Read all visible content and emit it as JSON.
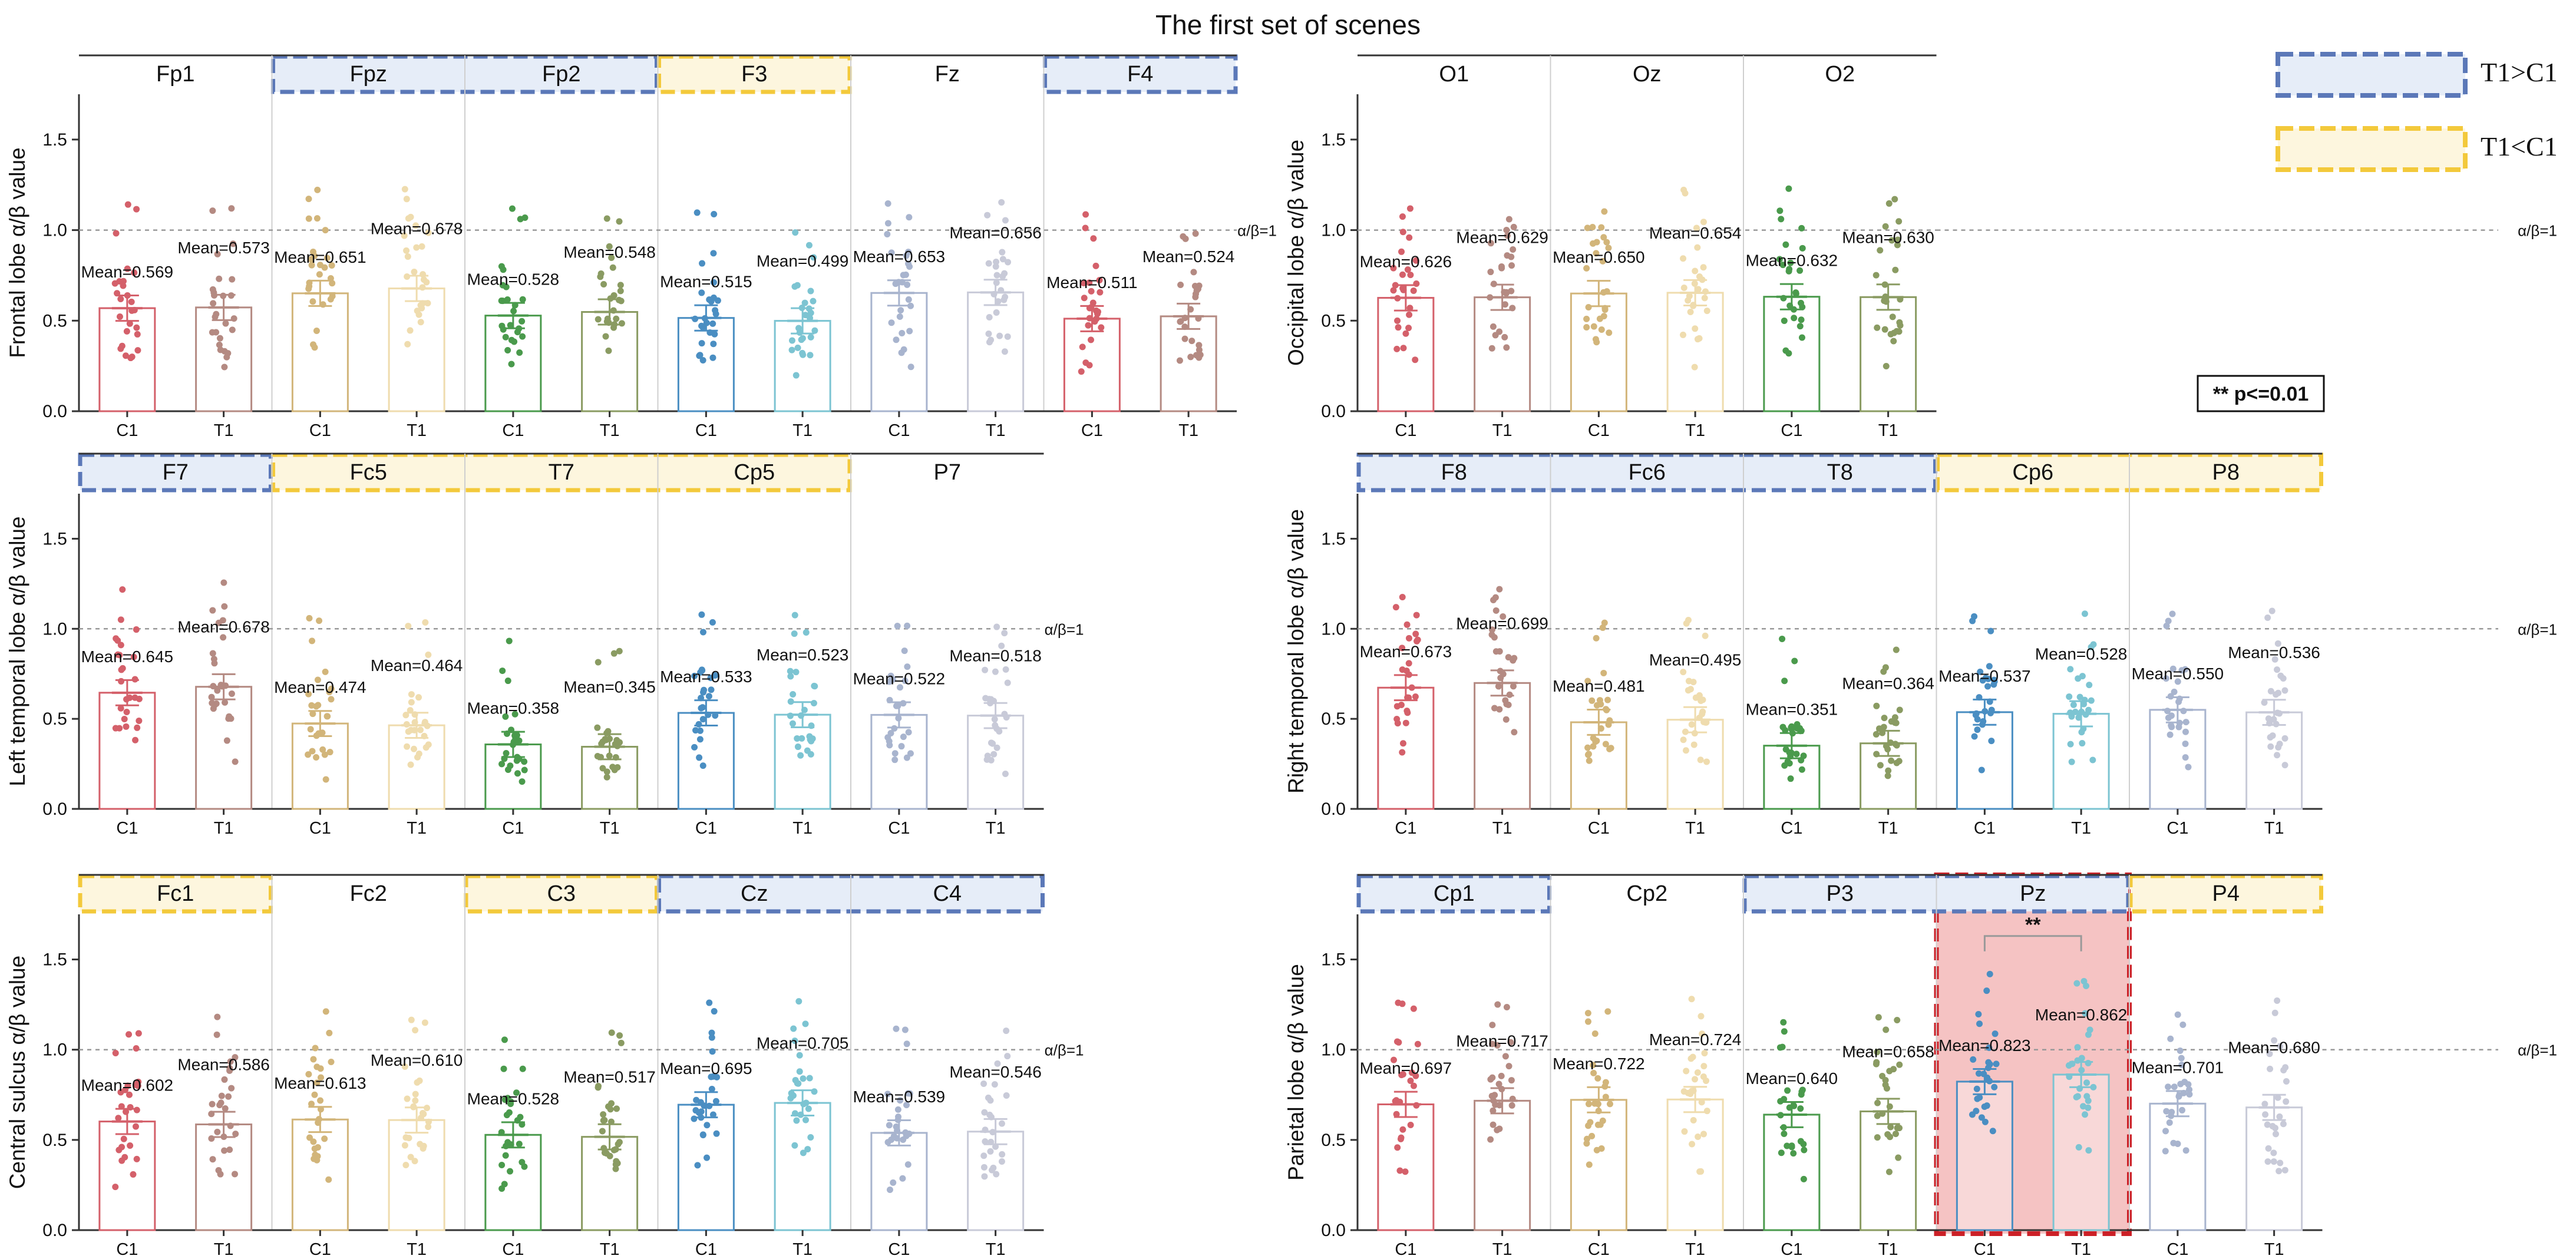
{
  "figure": {
    "title": "The first set of scenes",
    "legend": [
      {
        "label": "T1>C1",
        "stroke": "#5b78b8",
        "fill": "#e6edf8"
      },
      {
        "label": "T1<C1",
        "stroke": "#f3c93b",
        "fill": "#fdf6de"
      }
    ],
    "significance_note": "** p<=0.01",
    "ref_line_label": "α/β=1",
    "colors": {
      "highlight_blue_stroke": "#5b78b8",
      "highlight_blue_fill": "#e6edf8",
      "highlight_yellow_stroke": "#f3c93b",
      "highlight_yellow_fill": "#fdf6de",
      "sig_stroke": "#cc2027",
      "sig_fill": "#f5c3c3",
      "C1": [
        "#d4606a",
        "#d2b57a",
        "#4a9a4c",
        "#4a8ec2",
        "#a8b4ce"
      ],
      "T1": [
        "#b48a82",
        "#efdcae",
        "#8a9b62",
        "#7cc4d2",
        "#c8cad8"
      ]
    }
  },
  "chart_data": [
    {
      "type": "bar",
      "panel": "frontal",
      "ylabel": "Frontal lobe α/β value",
      "ylim": [
        0,
        1.75
      ],
      "yticks": [
        "0.0",
        "0.5",
        "1.0",
        "1.5"
      ],
      "ref_value": 1.0,
      "channels": [
        "Fp1",
        "Fpz",
        "Fp2",
        "F3",
        "Fz",
        "F4"
      ],
      "highlights": [
        {
          "start": 1,
          "end": 2,
          "kind": "blue"
        },
        {
          "start": 3,
          "end": 3,
          "kind": "yellow"
        },
        {
          "start": 5,
          "end": 5,
          "kind": "blue"
        }
      ],
      "categories": [
        "C1",
        "T1"
      ],
      "values": [
        [
          0.569,
          0.573
        ],
        [
          0.651,
          0.678
        ],
        [
          0.528,
          0.548
        ],
        [
          0.515,
          0.499
        ],
        [
          0.653,
          0.656
        ],
        [
          0.511,
          0.524
        ]
      ],
      "labels": [
        [
          "Mean=0.569",
          "Mean=0.573"
        ],
        [
          "Mean=0.651",
          "Mean=0.678"
        ],
        [
          "Mean=0.528",
          "Mean=0.548"
        ],
        [
          "Mean=0.515",
          "Mean=0.499"
        ],
        [
          "Mean=0.653",
          "Mean=0.656"
        ],
        [
          "Mean=0.511",
          "Mean=0.524"
        ]
      ],
      "sig": null
    },
    {
      "type": "bar",
      "panel": "occipital",
      "ylabel": "Occipital lobe α/β value",
      "ylim": [
        0,
        1.75
      ],
      "yticks": [
        "0.0",
        "0.5",
        "1.0",
        "1.5"
      ],
      "ref_value": 1.0,
      "channels": [
        "O1",
        "Oz",
        "O2"
      ],
      "highlights": [],
      "categories": [
        "C1",
        "T1"
      ],
      "values": [
        [
          0.626,
          0.629
        ],
        [
          0.65,
          0.654
        ],
        [
          0.632,
          0.63
        ]
      ],
      "labels": [
        [
          "Mean=0.626",
          "Mean=0.629"
        ],
        [
          "Mean=0.650",
          "Mean=0.654"
        ],
        [
          "Mean=0.632",
          "Mean=0.630"
        ]
      ],
      "sig": null
    },
    {
      "type": "bar",
      "panel": "left-temporal",
      "ylabel": "Left temporal lobe α/β value",
      "ylim": [
        0,
        1.75
      ],
      "yticks": [
        "0.0",
        "0.5",
        "1.0",
        "1.5"
      ],
      "ref_value": 1.0,
      "channels": [
        "F7",
        "Fc5",
        "T7",
        "Cp5",
        "P7"
      ],
      "highlights": [
        {
          "start": 0,
          "end": 0,
          "kind": "blue"
        },
        {
          "start": 1,
          "end": 3,
          "kind": "yellow"
        }
      ],
      "categories": [
        "C1",
        "T1"
      ],
      "values": [
        [
          0.645,
          0.678
        ],
        [
          0.474,
          0.464
        ],
        [
          0.358,
          0.345
        ],
        [
          0.533,
          0.523
        ],
        [
          0.522,
          0.518
        ]
      ],
      "labels": [
        [
          "Mean=0.645",
          "Mean=0.678"
        ],
        [
          "Mean=0.474",
          "Mean=0.464"
        ],
        [
          "Mean=0.358",
          "Mean=0.345"
        ],
        [
          "Mean=0.533",
          "Mean=0.523"
        ],
        [
          "Mean=0.522",
          "Mean=0.518"
        ]
      ],
      "sig": null
    },
    {
      "type": "bar",
      "panel": "right-temporal",
      "ylabel": "Right temporal lobe α/β value",
      "ylim": [
        0,
        1.75
      ],
      "yticks": [
        "0.0",
        "0.5",
        "1.0",
        "1.5"
      ],
      "ref_value": 1.0,
      "channels": [
        "F8",
        "Fc6",
        "T8",
        "Cp6",
        "P8"
      ],
      "highlights": [
        {
          "start": 0,
          "end": 2,
          "kind": "blue"
        },
        {
          "start": 3,
          "end": 4,
          "kind": "yellow"
        }
      ],
      "categories": [
        "C1",
        "T1"
      ],
      "values": [
        [
          0.673,
          0.699
        ],
        [
          0.481,
          0.495
        ],
        [
          0.351,
          0.364
        ],
        [
          0.537,
          0.528
        ],
        [
          0.55,
          0.536
        ]
      ],
      "labels": [
        [
          "Mean=0.673",
          "Mean=0.699"
        ],
        [
          "Mean=0.481",
          "Mean=0.495"
        ],
        [
          "Mean=0.351",
          "Mean=0.364"
        ],
        [
          "Mean=0.537",
          "Mean=0.528"
        ],
        [
          "Mean=0.550",
          "Mean=0.536"
        ]
      ],
      "sig": null
    },
    {
      "type": "bar",
      "panel": "central",
      "ylabel": "Central sulcus α/β value",
      "ylim": [
        0,
        1.75
      ],
      "yticks": [
        "0.0",
        "0.5",
        "1.0",
        "1.5"
      ],
      "ref_value": 1.0,
      "channels": [
        "Fc1",
        "Fc2",
        "C3",
        "Cz",
        "C4"
      ],
      "highlights": [
        {
          "start": 0,
          "end": 0,
          "kind": "yellow"
        },
        {
          "start": 2,
          "end": 2,
          "kind": "yellow"
        },
        {
          "start": 3,
          "end": 4,
          "kind": "blue"
        }
      ],
      "categories": [
        "C1",
        "T1"
      ],
      "values": [
        [
          0.602,
          0.586
        ],
        [
          0.613,
          0.61
        ],
        [
          0.528,
          0.517
        ],
        [
          0.695,
          0.705
        ],
        [
          0.539,
          0.546
        ]
      ],
      "labels": [
        [
          "Mean=0.602",
          "Mean=0.586"
        ],
        [
          "Mean=0.613",
          "Mean=0.610"
        ],
        [
          "Mean=0.528",
          "Mean=0.517"
        ],
        [
          "Mean=0.695",
          "Mean=0.705"
        ],
        [
          "Mean=0.539",
          "Mean=0.546"
        ]
      ],
      "sig": null
    },
    {
      "type": "bar",
      "panel": "parietal",
      "ylabel": "Parietal lobe α/β value",
      "ylim": [
        0,
        1.75
      ],
      "yticks": [
        "0.0",
        "0.5",
        "1.0",
        "1.5"
      ],
      "ref_value": 1.0,
      "channels": [
        "Cp1",
        "Cp2",
        "P3",
        "Pz",
        "P4"
      ],
      "highlights": [
        {
          "start": 0,
          "end": 0,
          "kind": "blue"
        },
        {
          "start": 2,
          "end": 3,
          "kind": "blue"
        },
        {
          "start": 4,
          "end": 4,
          "kind": "yellow"
        }
      ],
      "categories": [
        "C1",
        "T1"
      ],
      "values": [
        [
          0.697,
          0.717
        ],
        [
          0.722,
          0.724
        ],
        [
          0.64,
          0.658
        ],
        [
          0.823,
          0.862
        ],
        [
          0.701,
          0.68
        ]
      ],
      "labels": [
        [
          "Mean=0.697",
          "Mean=0.717"
        ],
        [
          "Mean=0.722",
          "Mean=0.724"
        ],
        [
          "Mean=0.640",
          "Mean=0.658"
        ],
        [
          "Mean=0.823",
          "Mean=0.862"
        ],
        [
          "Mean=0.701",
          "Mean=0.680"
        ]
      ],
      "sig": {
        "channel": 3,
        "text": "**"
      }
    }
  ]
}
